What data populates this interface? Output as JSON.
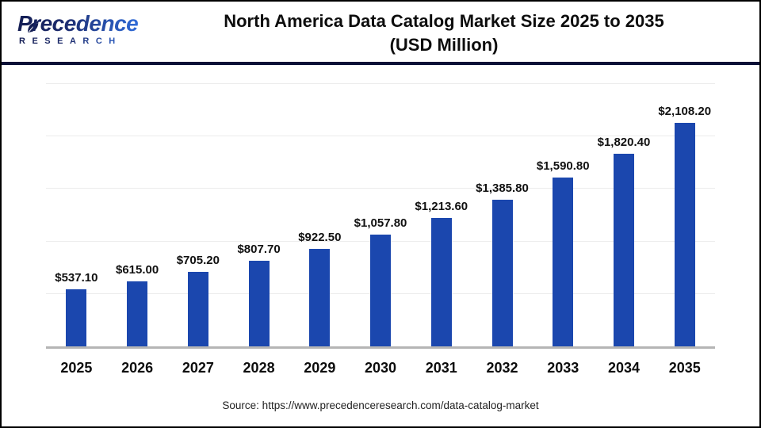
{
  "logo": {
    "brand_name": "Precedence",
    "brand_sub": "RESEARCH"
  },
  "header": {
    "title_line1": "North America Data Catalog Market Size 2025 to 2035",
    "title_line2": "(USD Million)"
  },
  "chart_data": {
    "type": "bar",
    "title": "North America Data Catalog Market Size 2025 to 2035 (USD Million)",
    "xlabel": "",
    "ylabel": "",
    "categories": [
      "2025",
      "2026",
      "2027",
      "2028",
      "2029",
      "2030",
      "2031",
      "2032",
      "2033",
      "2034",
      "2035"
    ],
    "values": [
      537.1,
      615.0,
      705.2,
      807.7,
      922.5,
      1057.8,
      1213.6,
      1385.8,
      1590.8,
      1820.4,
      2108.2
    ],
    "value_labels": [
      "$537.10",
      "$615.00",
      "$705.20",
      "$807.70",
      "$922.50",
      "$1,057.80",
      "$1,213.60",
      "$1,385.80",
      "$1,590.80",
      "$1,820.40",
      "$2,108.20"
    ],
    "ylim": [
      0,
      2500
    ],
    "gridline_step": 500,
    "grid": "horizontal",
    "legend": "none",
    "bar_color": "#1b47ae"
  },
  "colors": {
    "bar": "#1b47ae",
    "gridline": "#ececec",
    "baseline": "#b5b5b5",
    "header_divider": "#0a1036",
    "frame_border": "#000000",
    "logo_navy": "#131d52",
    "logo_blue": "#2f6bd8"
  },
  "footer": {
    "source": "Source: https://www.precedenceresearch.com/data-catalog-market"
  }
}
